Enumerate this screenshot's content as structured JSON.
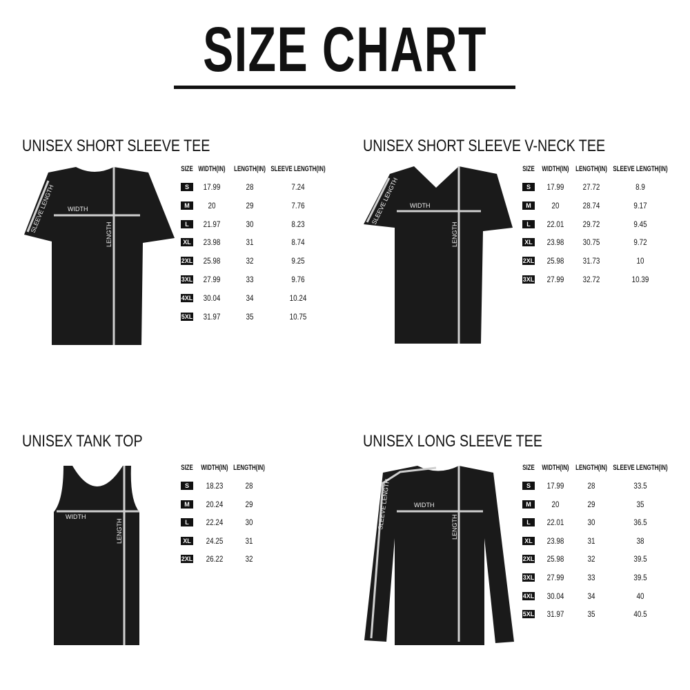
{
  "title": "SIZE CHART",
  "labels": {
    "width": "WIDTH",
    "length": "LENGTH",
    "sleeve_length": "SLEEVE LENGTH"
  },
  "colors": {
    "garment": "#1a1a1a",
    "measure_line": "#d0d0d0",
    "badge": "#111111"
  },
  "panels": [
    {
      "heading": "UNISEX SHORT SLEEVE TEE",
      "columns": [
        "SIZE",
        "WIDTH(IN)",
        "LENGTH(IN)",
        "SLEEVE LENGTH(IN)"
      ],
      "rows": [
        [
          "S",
          "17.99",
          "28",
          "7.24"
        ],
        [
          "M",
          "20",
          "29",
          "7.76"
        ],
        [
          "L",
          "21.97",
          "30",
          "8.23"
        ],
        [
          "XL",
          "23.98",
          "31",
          "8.74"
        ],
        [
          "2XL",
          "25.98",
          "32",
          "9.25"
        ],
        [
          "3XL",
          "27.99",
          "33",
          "9.76"
        ],
        [
          "4XL",
          "30.04",
          "34",
          "10.24"
        ],
        [
          "5XL",
          "31.97",
          "35",
          "10.75"
        ]
      ]
    },
    {
      "heading": "UNISEX SHORT SLEEVE V-NECK TEE",
      "columns": [
        "SIZE",
        "WIDTH(IN)",
        "LENGTH(IN)",
        "SLEEVE LENGTH(IN)"
      ],
      "rows": [
        [
          "S",
          "17.99",
          "27.72",
          "8.9"
        ],
        [
          "M",
          "20",
          "28.74",
          "9.17"
        ],
        [
          "L",
          "22.01",
          "29.72",
          "9.45"
        ],
        [
          "XL",
          "23.98",
          "30.75",
          "9.72"
        ],
        [
          "2XL",
          "25.98",
          "31.73",
          "10"
        ],
        [
          "3XL",
          "27.99",
          "32.72",
          "10.39"
        ]
      ]
    },
    {
      "heading": "UNISEX TANK TOP",
      "columns": [
        "SIZE",
        "WIDTH(IN)",
        "LENGTH(IN)"
      ],
      "rows": [
        [
          "S",
          "18.23",
          "28"
        ],
        [
          "M",
          "20.24",
          "29"
        ],
        [
          "L",
          "22.24",
          "30"
        ],
        [
          "XL",
          "24.25",
          "31"
        ],
        [
          "2XL",
          "26.22",
          "32"
        ]
      ]
    },
    {
      "heading": "UNISEX LONG SLEEVE TEE",
      "columns": [
        "SIZE",
        "WIDTH(IN)",
        "LENGTH(IN)",
        "SLEEVE LENGTH(IN)"
      ],
      "rows": [
        [
          "S",
          "17.99",
          "28",
          "33.5"
        ],
        [
          "M",
          "20",
          "29",
          "35"
        ],
        [
          "L",
          "22.01",
          "30",
          "36.5"
        ],
        [
          "XL",
          "23.98",
          "31",
          "38"
        ],
        [
          "2XL",
          "25.98",
          "32",
          "39.5"
        ],
        [
          "3XL",
          "27.99",
          "33",
          "39.5"
        ],
        [
          "4XL",
          "30.04",
          "34",
          "40"
        ],
        [
          "5XL",
          "31.97",
          "35",
          "40.5"
        ]
      ]
    }
  ]
}
